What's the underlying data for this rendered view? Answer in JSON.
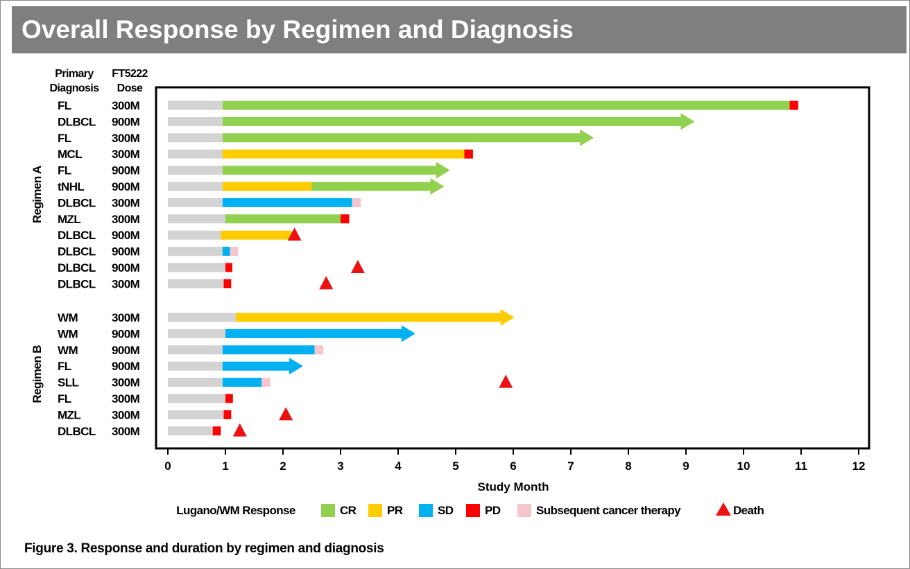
{
  "title": "Overall Response by Regimen and Diagnosis",
  "caption": "Figure 3. Response and duration by regimen and diagnosis",
  "colors": {
    "CR": "#92d050",
    "PR": "#ffcc00",
    "SD": "#00b0f0",
    "PD": "#ff0000",
    "subsequent": "#f4c6cc",
    "screening": "#d3d3d3",
    "death": "#ee1111",
    "banner": "#7f7f7f"
  },
  "chart_data": {
    "type": "swimmer",
    "xlabel": "Study Month",
    "xlim": [
      0,
      12
    ],
    "xticks": [
      0,
      1,
      2,
      3,
      4,
      5,
      6,
      7,
      8,
      9,
      10,
      11,
      12
    ],
    "column_headers": {
      "diagnosis": [
        "Primary",
        "Diagnosis"
      ],
      "dose": [
        "FT5222",
        "Dose"
      ]
    },
    "groups": [
      {
        "name": "Regimen A",
        "rows": [
          {
            "diagnosis": "FL",
            "dose": "300M",
            "segments": [
              [
                "screen",
                0,
                0.95
              ],
              [
                "CR",
                0.95,
                10.8
              ],
              [
                "PD",
                10.8,
                10.95
              ]
            ],
            "arrow": false,
            "death": null
          },
          {
            "diagnosis": "DLBCL",
            "dose": "900M",
            "segments": [
              [
                "screen",
                0,
                0.95
              ],
              [
                "CR",
                0.95,
                9.15
              ]
            ],
            "arrow": true,
            "death": null
          },
          {
            "diagnosis": "FL",
            "dose": "300M",
            "segments": [
              [
                "screen",
                0,
                0.95
              ],
              [
                "CR",
                0.95,
                7.4
              ]
            ],
            "arrow": true,
            "death": null
          },
          {
            "diagnosis": "MCL",
            "dose": "300M",
            "segments": [
              [
                "screen",
                0,
                0.95
              ],
              [
                "PR",
                0.95,
                5.15
              ],
              [
                "PD",
                5.15,
                5.3
              ]
            ],
            "arrow": false,
            "death": null
          },
          {
            "diagnosis": "FL",
            "dose": "900M",
            "segments": [
              [
                "screen",
                0,
                0.95
              ],
              [
                "CR",
                0.95,
                4.9
              ]
            ],
            "arrow": true,
            "death": null
          },
          {
            "diagnosis": "tNHL",
            "dose": "900M",
            "segments": [
              [
                "screen",
                0,
                0.95
              ],
              [
                "PR",
                0.95,
                2.5
              ],
              [
                "CR",
                2.5,
                4.8
              ]
            ],
            "arrow": true,
            "death": null
          },
          {
            "diagnosis": "DLBCL",
            "dose": "300M",
            "segments": [
              [
                "screen",
                0,
                0.95
              ],
              [
                "SD",
                0.95,
                3.2
              ],
              [
                "subsequent",
                3.2,
                3.35
              ]
            ],
            "arrow": false,
            "death": null
          },
          {
            "diagnosis": "MZL",
            "dose": "300M",
            "segments": [
              [
                "screen",
                0,
                1.0
              ],
              [
                "CR",
                1.0,
                3.0
              ],
              [
                "PD",
                3.0,
                3.15
              ]
            ],
            "arrow": false,
            "death": null
          },
          {
            "diagnosis": "DLBCL",
            "dose": "900M",
            "segments": [
              [
                "screen",
                0,
                0.92
              ],
              [
                "PR",
                0.92,
                2.15
              ]
            ],
            "arrow": false,
            "death": 2.2
          },
          {
            "diagnosis": "DLBCL",
            "dose": "900M",
            "segments": [
              [
                "screen",
                0,
                0.95
              ],
              [
                "SD",
                0.95,
                1.08
              ],
              [
                "subsequent",
                1.08,
                1.22
              ]
            ],
            "arrow": false,
            "death": null
          },
          {
            "diagnosis": "DLBCL",
            "dose": "900M",
            "segments": [
              [
                "screen",
                0,
                1.0
              ],
              [
                "PD",
                1.0,
                1.12
              ]
            ],
            "arrow": false,
            "death": 3.3
          },
          {
            "diagnosis": "DLBCL",
            "dose": "300M",
            "segments": [
              [
                "screen",
                0,
                0.97
              ],
              [
                "PD",
                0.97,
                1.1
              ]
            ],
            "arrow": false,
            "death": 2.75
          }
        ]
      },
      {
        "name": "Regimen B",
        "rows": [
          {
            "diagnosis": "WM",
            "dose": "300M",
            "segments": [
              [
                "screen",
                0,
                1.18
              ],
              [
                "PR",
                1.18,
                6.02
              ]
            ],
            "arrow": true,
            "death": null
          },
          {
            "diagnosis": "WM",
            "dose": "900M",
            "segments": [
              [
                "screen",
                0,
                1.0
              ],
              [
                "SD",
                1.0,
                4.3
              ]
            ],
            "arrow": true,
            "death": null
          },
          {
            "diagnosis": "WM",
            "dose": "900M",
            "segments": [
              [
                "screen",
                0,
                0.95
              ],
              [
                "SD",
                0.95,
                2.55
              ],
              [
                "subsequent",
                2.55,
                2.7
              ]
            ],
            "arrow": false,
            "death": null
          },
          {
            "diagnosis": "FL",
            "dose": "900M",
            "segments": [
              [
                "screen",
                0,
                0.95
              ],
              [
                "SD",
                0.95,
                2.35
              ]
            ],
            "arrow": true,
            "death": null
          },
          {
            "diagnosis": "SLL",
            "dose": "300M",
            "segments": [
              [
                "screen",
                0,
                0.95
              ],
              [
                "SD",
                0.95,
                1.63
              ],
              [
                "subsequent",
                1.63,
                1.78
              ]
            ],
            "arrow": false,
            "death": 5.87
          },
          {
            "diagnosis": "FL",
            "dose": "300M",
            "segments": [
              [
                "screen",
                0,
                1.0
              ],
              [
                "PD",
                1.0,
                1.13
              ]
            ],
            "arrow": false,
            "death": null
          },
          {
            "diagnosis": "MZL",
            "dose": "300M",
            "segments": [
              [
                "screen",
                0,
                0.97
              ],
              [
                "PD",
                0.97,
                1.1
              ]
            ],
            "arrow": false,
            "death": 2.05
          },
          {
            "diagnosis": "DLBCL",
            "dose": "300M",
            "segments": [
              [
                "screen",
                0,
                0.78
              ],
              [
                "PD",
                0.78,
                0.92
              ]
            ],
            "arrow": false,
            "death": 1.25
          }
        ]
      }
    ],
    "legend": {
      "title": "Lugano/WM Response",
      "items": [
        {
          "key": "CR",
          "label": "CR"
        },
        {
          "key": "PR",
          "label": "PR"
        },
        {
          "key": "SD",
          "label": "SD"
        },
        {
          "key": "PD",
          "label": "PD"
        },
        {
          "key": "subsequent",
          "label": "Subsequent cancer therapy"
        },
        {
          "key": "death",
          "label": "Death"
        }
      ]
    }
  }
}
